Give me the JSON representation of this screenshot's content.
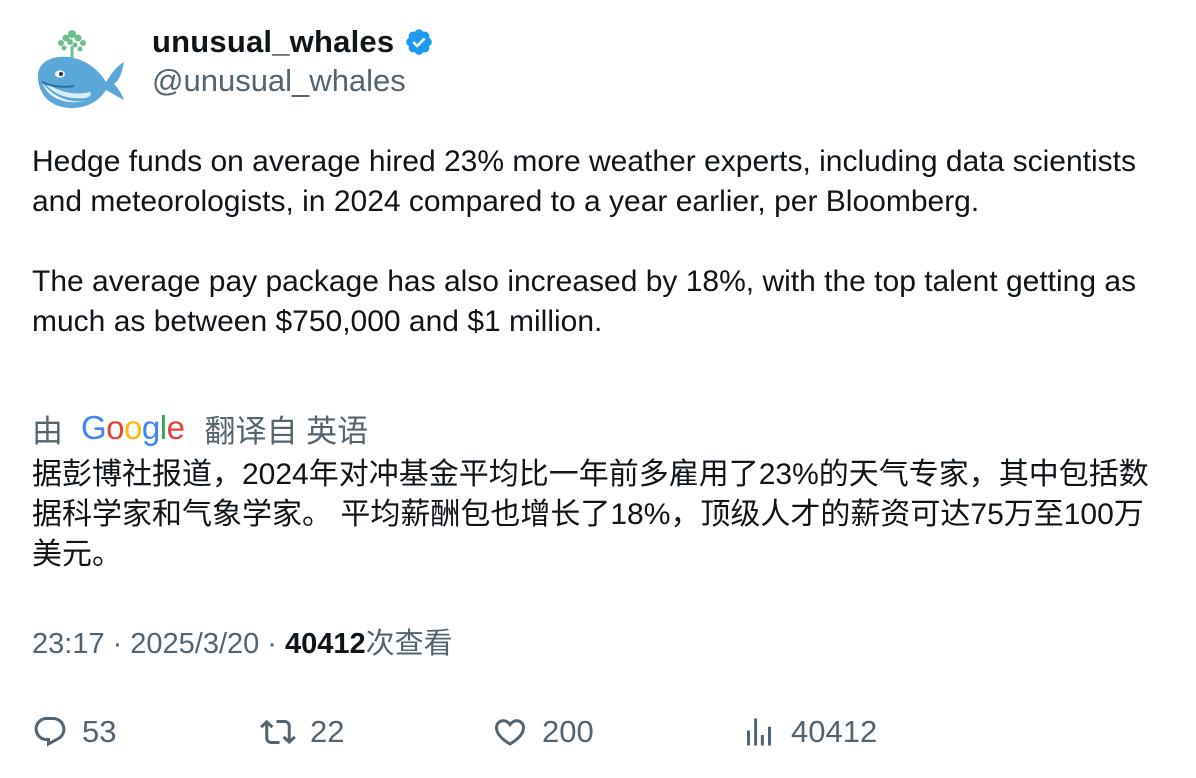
{
  "author": {
    "display_name": "unusual_whales",
    "handle": "@unusual_whales",
    "verified": true,
    "avatar_icon": "whale-avatar-icon"
  },
  "tweet": {
    "paragraphs": [
      "Hedge funds on average hired 23% more weather experts, including data scientists and meteorologists, in 2024 compared to a year earlier, per Bloomberg.",
      "The average pay package has also increased by 18%, with the top talent getting as much as between $750,000 and $1 million."
    ]
  },
  "translation": {
    "prefix": "由",
    "provider": "Google",
    "suffix": "翻译自 英语",
    "text": "据彭博社报道，2024年对冲基金平均比一年前多雇用了23%的天气专家，其中包括数据科学家和气象学家。 平均薪酬包也增长了18%，顶级人才的薪资可达75万至100万美元。"
  },
  "meta": {
    "time": "23:17",
    "separator": "·",
    "date": "2025/3/20",
    "views_count": "40412",
    "views_label": "次查看"
  },
  "actions": {
    "replies": "53",
    "retweets": "22",
    "likes": "200",
    "views": "40412"
  },
  "colors": {
    "text_primary": "#0f1419",
    "text_secondary": "#536471",
    "verified_blue": "#1d9bf0",
    "whale_blue": "#5ba8d8",
    "spout_green": "#6fbf8e"
  }
}
